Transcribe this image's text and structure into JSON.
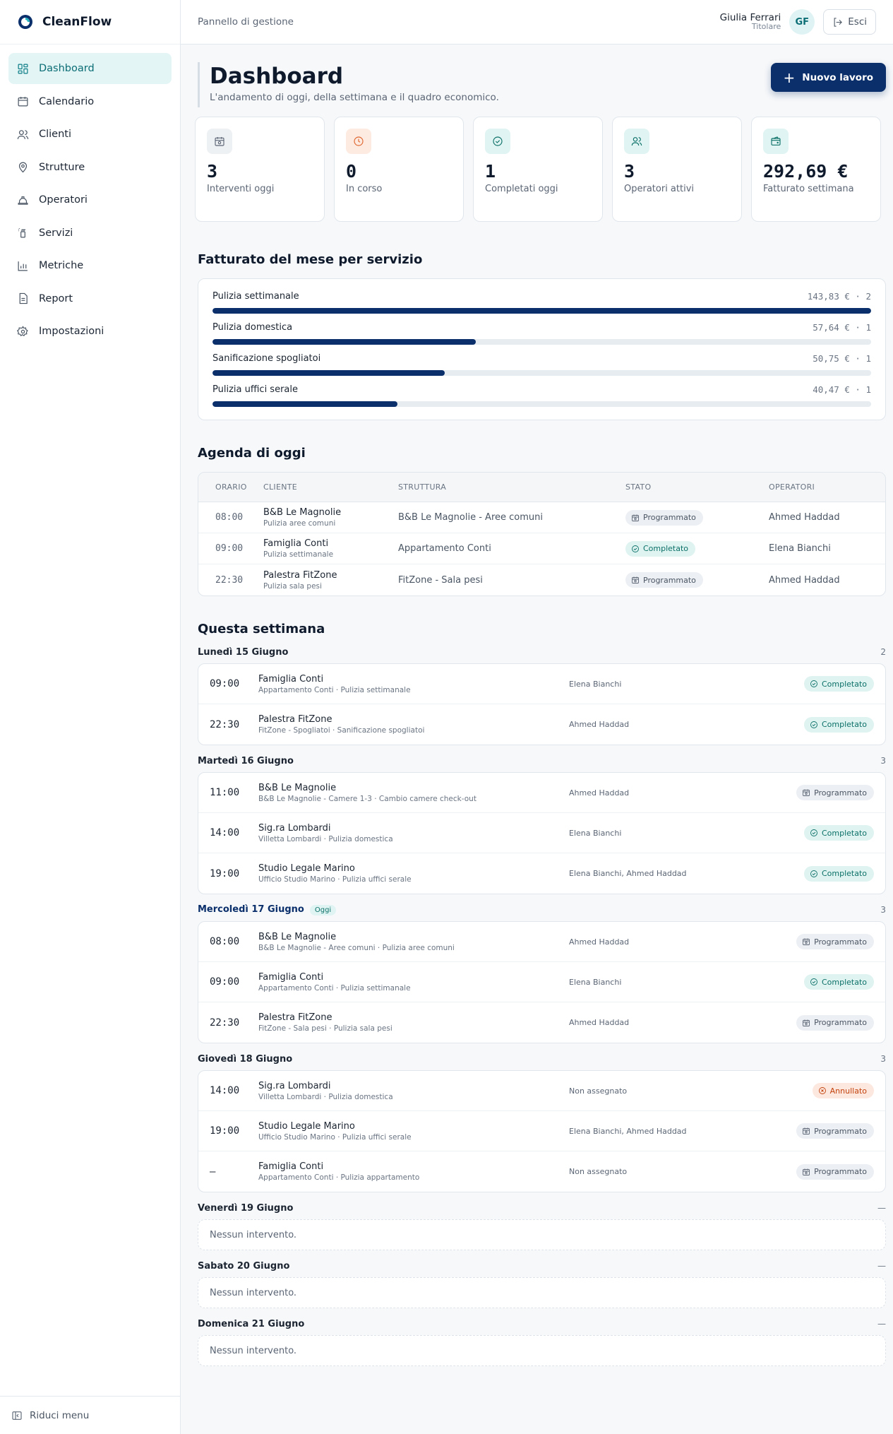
{
  "app": {
    "name": "CleanFlow"
  },
  "sidebar": {
    "items": [
      {
        "label": "Dashboard",
        "icon": "dashboard-icon"
      },
      {
        "label": "Calendario",
        "icon": "calendar-icon"
      },
      {
        "label": "Clienti",
        "icon": "users-icon"
      },
      {
        "label": "Strutture",
        "icon": "map-pin-icon"
      },
      {
        "label": "Operatori",
        "icon": "hard-hat-icon"
      },
      {
        "label": "Servizi",
        "icon": "spray-icon"
      },
      {
        "label": "Metriche",
        "icon": "bar-chart-icon"
      },
      {
        "label": "Report",
        "icon": "file-icon"
      },
      {
        "label": "Impostazioni",
        "icon": "gear-icon"
      }
    ],
    "collapse_label": "Riduci menu"
  },
  "topbar": {
    "breadcrumb": "Pannello di gestione",
    "user_name": "Giulia Ferrari",
    "user_role": "Titolare",
    "avatar_initials": "GF",
    "logout_label": "Esci"
  },
  "header": {
    "title": "Dashboard",
    "subtitle": "L'andamento di oggi, della settimana e il quadro economico.",
    "new_button": "Nuovo lavoro"
  },
  "stats": [
    {
      "value": "3",
      "label": "Interventi oggi",
      "icon": "calendar-clock-icon",
      "bg": "#eef1f4",
      "color": "#5b6574"
    },
    {
      "value": "0",
      "label": "In corso",
      "icon": "clock-icon",
      "bg": "#fdebe2",
      "color": "#e0662f"
    },
    {
      "value": "1",
      "label": "Completati oggi",
      "icon": "check-circle-icon",
      "bg": "#e0f4f3",
      "color": "#0c7168"
    },
    {
      "value": "3",
      "label": "Operatori attivi",
      "icon": "users-icon",
      "bg": "#e0f4f3",
      "color": "#0c7168"
    },
    {
      "value": "292,69 €",
      "label": "Fatturato settimana",
      "icon": "wallet-icon",
      "bg": "#e0f4f3",
      "color": "#0c7168"
    }
  ],
  "revenue": {
    "title": "Fatturato del mese per servizio",
    "rows": [
      {
        "service": "Pulizia settimanale",
        "amount": "143,83 € · 2",
        "fraction": 1.0
      },
      {
        "service": "Pulizia domestica",
        "amount": "57,64 € · 1",
        "fraction": 0.4
      },
      {
        "service": "Sanificazione spogliatoi",
        "amount": "50,75 € · 1",
        "fraction": 0.353
      },
      {
        "service": "Pulizia uffici serale",
        "amount": "40,47 € · 1",
        "fraction": 0.281
      }
    ]
  },
  "agenda": {
    "title": "Agenda di oggi",
    "columns": [
      "Orario",
      "Cliente",
      "Struttura",
      "Stato",
      "Operatori"
    ],
    "rows": [
      {
        "time": "08:00",
        "client": "B&B Le Magnolie",
        "service": "Pulizia aree comuni",
        "structure": "B&B Le Magnolie - Aree comuni",
        "status": "Programmato",
        "status_type": "prog",
        "operators": "Ahmed Haddad"
      },
      {
        "time": "09:00",
        "client": "Famiglia Conti",
        "service": "Pulizia settimanale",
        "structure": "Appartamento Conti",
        "status": "Completato",
        "status_type": "comp",
        "operators": "Elena Bianchi"
      },
      {
        "time": "22:30",
        "client": "Palestra FitZone",
        "service": "Pulizia sala pesi",
        "structure": "FitZone - Sala pesi",
        "status": "Programmato",
        "status_type": "prog",
        "operators": "Ahmed Haddad"
      }
    ]
  },
  "week": {
    "title": "Questa settimana",
    "today_label": "Oggi",
    "empty_label": "Nessun intervento.",
    "days": [
      {
        "name": "Lunedì 15 Giugno",
        "count": "2",
        "today": false,
        "items": [
          {
            "time": "09:00",
            "client": "Famiglia Conti",
            "detail": "Appartamento Conti · Pulizia settimanale",
            "operators": "Elena Bianchi",
            "status": "Completato",
            "status_type": "comp"
          },
          {
            "time": "22:30",
            "client": "Palestra FitZone",
            "detail": "FitZone - Spogliatoi · Sanificazione spogliatoi",
            "operators": "Ahmed Haddad",
            "status": "Completato",
            "status_type": "comp"
          }
        ]
      },
      {
        "name": "Martedì 16 Giugno",
        "count": "3",
        "today": false,
        "items": [
          {
            "time": "11:00",
            "client": "B&B Le Magnolie",
            "detail": "B&B Le Magnolie - Camere 1-3 · Cambio camere check-out",
            "operators": "Ahmed Haddad",
            "status": "Programmato",
            "status_type": "prog"
          },
          {
            "time": "14:00",
            "client": "Sig.ra Lombardi",
            "detail": "Villetta Lombardi · Pulizia domestica",
            "operators": "Elena Bianchi",
            "status": "Completato",
            "status_type": "comp"
          },
          {
            "time": "19:00",
            "client": "Studio Legale Marino",
            "detail": "Ufficio Studio Marino · Pulizia uffici serale",
            "operators": "Elena Bianchi, Ahmed Haddad",
            "status": "Completato",
            "status_type": "comp"
          }
        ]
      },
      {
        "name": "Mercoledì 17 Giugno",
        "count": "3",
        "today": true,
        "items": [
          {
            "time": "08:00",
            "client": "B&B Le Magnolie",
            "detail": "B&B Le Magnolie - Aree comuni · Pulizia aree comuni",
            "operators": "Ahmed Haddad",
            "status": "Programmato",
            "status_type": "prog"
          },
          {
            "time": "09:00",
            "client": "Famiglia Conti",
            "detail": "Appartamento Conti · Pulizia settimanale",
            "operators": "Elena Bianchi",
            "status": "Completato",
            "status_type": "comp"
          },
          {
            "time": "22:30",
            "client": "Palestra FitZone",
            "detail": "FitZone - Sala pesi · Pulizia sala pesi",
            "operators": "Ahmed Haddad",
            "status": "Programmato",
            "status_type": "prog"
          }
        ]
      },
      {
        "name": "Giovedì 18 Giugno",
        "count": "3",
        "today": false,
        "items": [
          {
            "time": "14:00",
            "client": "Sig.ra Lombardi",
            "detail": "Villetta Lombardi · Pulizia domestica",
            "operators": "Non assegnato",
            "status": "Annullato",
            "status_type": "ann"
          },
          {
            "time": "19:00",
            "client": "Studio Legale Marino",
            "detail": "Ufficio Studio Marino · Pulizia uffici serale",
            "operators": "Elena Bianchi, Ahmed Haddad",
            "status": "Programmato",
            "status_type": "prog"
          },
          {
            "time": "—",
            "client": "Famiglia Conti",
            "detail": "Appartamento Conti · Pulizia appartamento",
            "operators": "Non assegnato",
            "status": "Programmato",
            "status_type": "prog"
          }
        ]
      },
      {
        "name": "Venerdì 19 Giugno",
        "count": "—",
        "today": false,
        "items": []
      },
      {
        "name": "Sabato 20 Giugno",
        "count": "—",
        "today": false,
        "items": []
      },
      {
        "name": "Domenica 21 Giugno",
        "count": "—",
        "today": false,
        "items": []
      }
    ]
  }
}
